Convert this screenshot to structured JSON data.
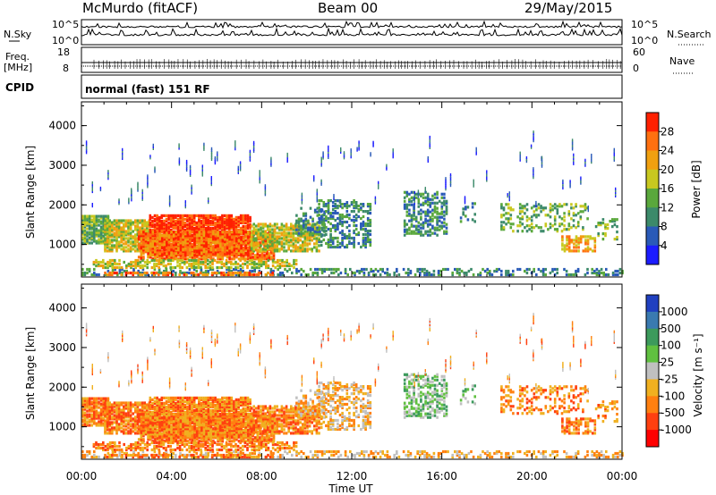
{
  "header": {
    "station": "McMurdo (fitACF)",
    "beam": "Beam 00",
    "date": "29/May/2015"
  },
  "strip_top": {
    "left_label": "N.Sky",
    "right_label": "N.Search",
    "left_ticks": [
      "10^5",
      "10^0"
    ],
    "right_ticks": [
      "10^5",
      "10^0"
    ]
  },
  "strip_mid": {
    "left_label_1": "Freq.",
    "left_label_2": "[MHz]",
    "left_ticks": [
      "18",
      "8"
    ],
    "right_label": "Nave",
    "right_ticks": [
      "60",
      "0"
    ]
  },
  "strip_cpid": {
    "label": "CPID",
    "text": "normal (fast) 151 RF"
  },
  "chart_data": [
    {
      "type": "heatmap",
      "name": "power",
      "ylabel": "Slant Range [km]",
      "yticks": [
        "1000",
        "2000",
        "3000",
        "4000"
      ],
      "ylim": [
        180,
        4600
      ],
      "xlim": [
        0,
        24
      ],
      "colorbar_label": "Power [dB]",
      "colorbar_ticks": [
        "4",
        "8",
        "12",
        "16",
        "20",
        "24",
        "28"
      ],
      "colors": [
        "#1c1cff",
        "#2a5ab8",
        "#3c8a6a",
        "#5aa83c",
        "#c8c820",
        "#f0a010",
        "#ff7010",
        "#ff2000"
      ]
    },
    {
      "type": "heatmap",
      "name": "velocity",
      "ylabel": "Slant Range [km]",
      "yticks": [
        "1000",
        "2000",
        "3000",
        "4000"
      ],
      "ylim": [
        180,
        4600
      ],
      "xlim": [
        0,
        24
      ],
      "xlabel": "Time UT",
      "xticks": [
        "00:00",
        "04:00",
        "08:00",
        "12:00",
        "16:00",
        "20:00",
        "00:00"
      ],
      "colorbar_label": "Velocity [m s⁻¹]",
      "colorbar_ticks": [
        "1000",
        "500",
        "100",
        "25",
        "-25",
        "-100",
        "-500",
        "-1000"
      ],
      "colors": [
        "#2040c0",
        "#3a7ab0",
        "#3c9a5c",
        "#60c040",
        "#c0c0c0",
        "#f0b020",
        "#ff8010",
        "#ff4010",
        "#ff0000"
      ]
    }
  ]
}
